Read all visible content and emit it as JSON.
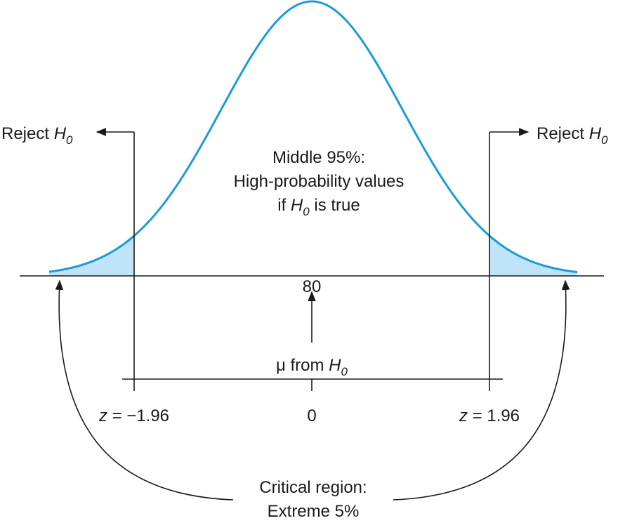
{
  "colors": {
    "curve": "#1e9ad8",
    "tail_fill": "#bfe3f7",
    "ink": "#1a1a1a"
  },
  "labels": {
    "reject_left": {
      "text": "Reject ",
      "var": "H",
      "sub": "0"
    },
    "reject_right": {
      "text": "Reject ",
      "var": "H",
      "sub": "0"
    },
    "middle_line1": "Middle 95%:",
    "middle_line2": "High-probability values",
    "middle_line3_pre": "if ",
    "middle_line3_var": "H",
    "middle_line3_sub": "0",
    "middle_line3_post": " is true",
    "mean_value": "80",
    "mu_text": "μ from ",
    "mu_var": "H",
    "mu_sub": "0",
    "z_left_var": "z",
    "z_left_val": " = −1.96",
    "z_center": "0",
    "z_right_var": "z",
    "z_right_val": " = 1.96",
    "critical_line1": "Critical region:",
    "critical_line2": "Extreme 5%"
  },
  "distribution": {
    "mean": 80,
    "z_critical_low": -1.96,
    "z_critical_high": 1.96,
    "middle_percent": 95,
    "tail_percent_total": 5
  }
}
